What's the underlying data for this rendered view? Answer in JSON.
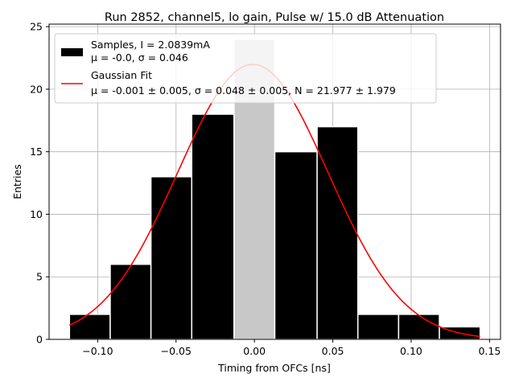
{
  "chart_data": {
    "type": "histogram",
    "title": "Run 2852, channel5, lo gain, Pulse w/ 15.0 dB Attenuation",
    "xlabel": "Timing from OFCs [ns]",
    "ylabel": "Entries",
    "xlim": [
      -0.131,
      0.157
    ],
    "ylim": [
      0,
      25.2
    ],
    "xticks": [
      -0.1,
      -0.05,
      0.0,
      0.05,
      0.1,
      0.15
    ],
    "xtick_labels": [
      "−0.10",
      "−0.05",
      "0.00",
      "0.05",
      "0.10",
      "0.15"
    ],
    "yticks": [
      0,
      5,
      10,
      15,
      20,
      25
    ],
    "ytick_labels": [
      "0",
      "5",
      "10",
      "15",
      "20",
      "25"
    ],
    "grid": true,
    "legend_position": "top-left",
    "bin_edges": [
      -0.118,
      -0.092,
      -0.066,
      -0.04,
      -0.013,
      0.013,
      0.04,
      0.066,
      0.092,
      0.118,
      0.144
    ],
    "counts": [
      2,
      6,
      13,
      18,
      24,
      15,
      17,
      2,
      2,
      1
    ],
    "highlight_bin_index": 4,
    "colors": {
      "bars": "#000000",
      "bar_edges": "#ffffff",
      "highlight_bar": "#c8c8c8",
      "fit": "#ff0000",
      "grid": "#b0b0b0"
    },
    "series": [
      {
        "name": "Samples, I = 2.0839mA",
        "stats_label": "μ = -0.0, σ = 0.046",
        "type": "histogram"
      },
      {
        "name": "Gaussian Fit",
        "stats_label": "μ = -0.001 ± 0.005, σ = 0.048 ± 0.005, N = 21.977 ± 1.979",
        "type": "line",
        "mu": -0.001,
        "sigma": 0.048,
        "N": 21.977,
        "x_range": [
          -0.118,
          0.144
        ]
      }
    ]
  }
}
